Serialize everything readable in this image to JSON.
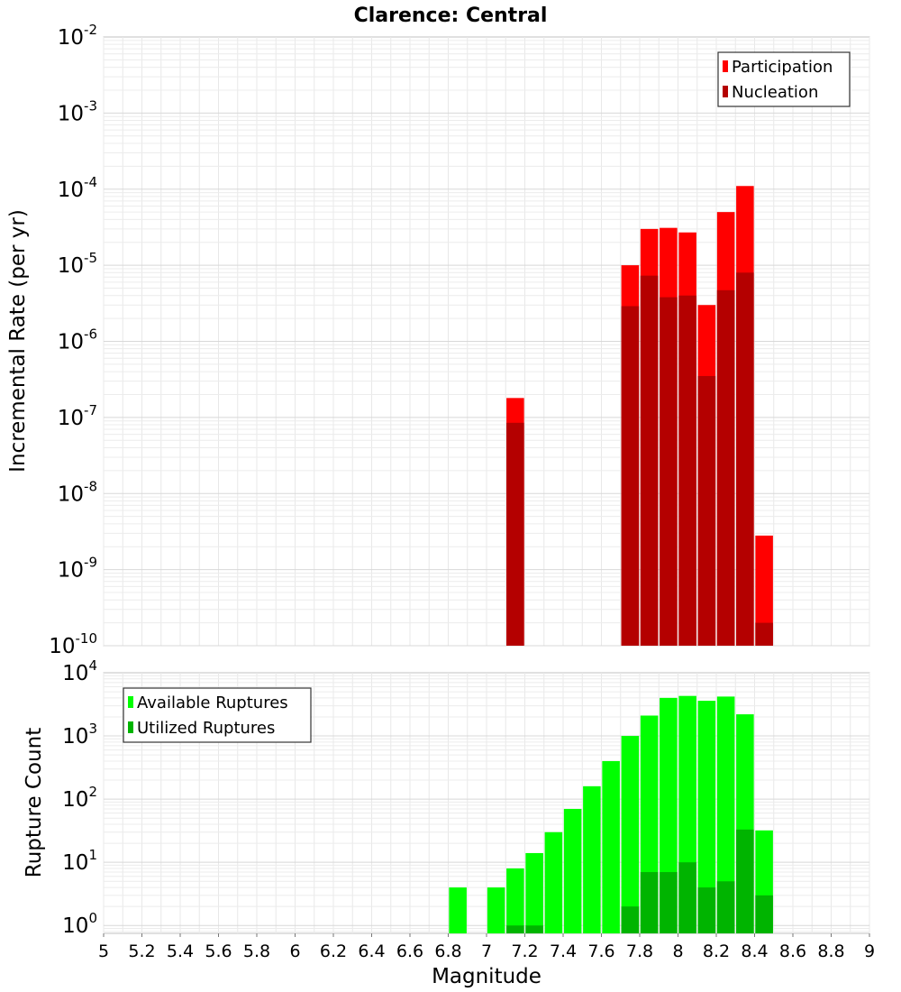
{
  "title": "Clarence: Central",
  "chart_data": [
    {
      "type": "bar",
      "title": "Clarence: Central",
      "xlabel": "Magnitude",
      "ylabel": "Incremental Rate (per yr)",
      "yscale": "log",
      "ylim": [
        1e-10,
        0.01
      ],
      "xlim": [
        5,
        9
      ],
      "grid": true,
      "legend_position": "top-right",
      "y_tick_exponents": [
        "-10",
        "-9",
        "-8",
        "-7",
        "-6",
        "-5",
        "-4",
        "-3",
        "-2"
      ],
      "x": [
        7.15,
        7.75,
        7.85,
        7.95,
        8.05,
        8.15,
        8.25,
        8.35,
        8.45
      ],
      "series": [
        {
          "name": "Participation",
          "color": "#ff0000",
          "values": [
            1.8e-07,
            1e-05,
            3e-05,
            3.1e-05,
            2.7e-05,
            3e-06,
            5e-05,
            0.00011,
            2.8e-09
          ]
        },
        {
          "name": "Nucleation",
          "color": "#b40000",
          "values": [
            8.5e-08,
            2.9e-06,
            7.3e-06,
            3.8e-06,
            4e-06,
            3.5e-07,
            4.7e-06,
            8e-06,
            2e-10
          ]
        }
      ]
    },
    {
      "type": "bar",
      "xlabel": "Magnitude",
      "ylabel": "Rupture Count",
      "yscale": "log",
      "ylim": [
        0.75,
        10000
      ],
      "xlim": [
        5,
        9
      ],
      "grid": true,
      "legend_position": "top-left",
      "y_tick_exponents": [
        "0",
        "1",
        "2",
        "3",
        "4"
      ],
      "x_ticks": [
        "5",
        "5.2",
        "5.4",
        "5.6",
        "5.8",
        "6",
        "6.2",
        "6.4",
        "6.6",
        "6.8",
        "7",
        "7.2",
        "7.4",
        "7.6",
        "7.8",
        "8",
        "8.2",
        "8.4",
        "8.6",
        "8.8",
        "9"
      ],
      "x": [
        6.85,
        7.05,
        7.15,
        7.25,
        7.35,
        7.45,
        7.55,
        7.65,
        7.75,
        7.85,
        7.95,
        8.05,
        8.15,
        8.25,
        8.35,
        8.45
      ],
      "series": [
        {
          "name": "Available Ruptures",
          "color": "#00ff00",
          "values": [
            4,
            4,
            8,
            14,
            30,
            70,
            160,
            400,
            1000,
            2100,
            4000,
            4300,
            3600,
            4200,
            2200,
            32
          ]
        },
        {
          "name": "Utilized Ruptures",
          "color": "#00b400",
          "values": [
            null,
            null,
            1,
            1,
            null,
            null,
            null,
            null,
            2,
            7,
            7,
            10,
            4,
            5,
            33,
            3
          ]
        }
      ]
    }
  ]
}
